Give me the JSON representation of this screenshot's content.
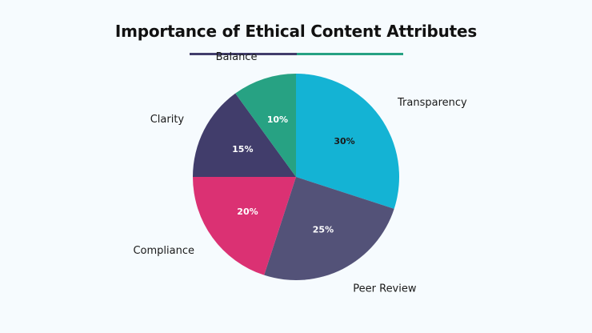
{
  "chart_data": {
    "type": "pie",
    "title": "Importance of Ethical Content Attributes",
    "categories": [
      "Transparency",
      "Peer Review",
      "Compliance",
      "Clarity",
      "Balance"
    ],
    "values": [
      30,
      25,
      20,
      15,
      10
    ],
    "value_labels": [
      "30%",
      "25%",
      "20%",
      "15%",
      "10%"
    ],
    "colors": [
      "#14b3d4",
      "#535278",
      "#db3173",
      "#413d6b",
      "#27a283"
    ],
    "value_label_colors": [
      "#1a1a1a",
      "#ffffff",
      "#ffffff",
      "#ffffff",
      "#ffffff"
    ],
    "start_angle": "top, clockwise",
    "legend": "none"
  },
  "underline_colors": [
    "#413d6b",
    "#27a283"
  ]
}
